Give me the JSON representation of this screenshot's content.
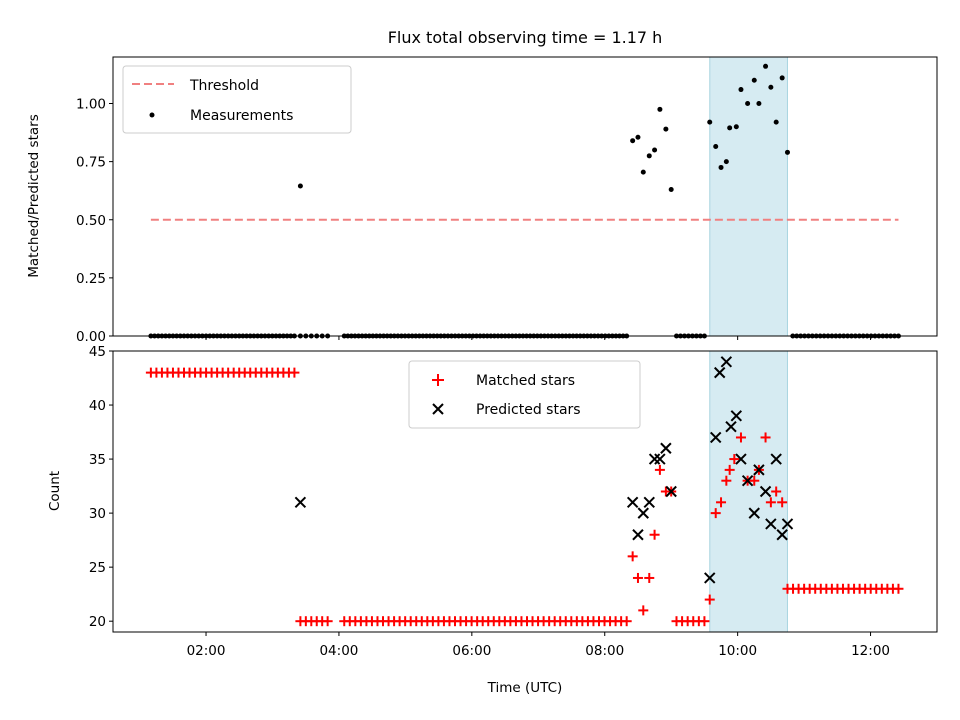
{
  "chart_data": [
    {
      "type": "scatter",
      "title": "Flux total observing time = 1.17 h",
      "xlabel": "",
      "ylabel": "Matched/Predicted stars",
      "ylim": [
        0,
        1.2
      ],
      "yticks": [
        "0.00",
        "0.25",
        "0.50",
        "0.75",
        "1.00"
      ],
      "ytick_values": [
        0,
        0.25,
        0.5,
        0.75,
        1.0
      ],
      "xlim_hours": [
        0.6,
        13.0
      ],
      "highlight_span_hours": [
        9.58,
        10.75
      ],
      "highlight_color": "#add8e6",
      "legend_position": "upper-left",
      "threshold": {
        "name": "Threshold",
        "value": 0.5,
        "x_range_hours": [
          1.17,
          12.42
        ],
        "color": "#f08080"
      },
      "measurements_name": "Measurements",
      "zero_runs_hours": [
        [
          1.17,
          3.33,
          40
        ],
        [
          3.42,
          3.83,
          6
        ],
        [
          4.08,
          8.33,
          80
        ],
        [
          9.08,
          9.5,
          8
        ],
        [
          10.83,
          12.42,
          28
        ]
      ],
      "series": [
        {
          "name": "Measurements",
          "color": "#000000",
          "x_hours": [
            3.42,
            8.42,
            8.5,
            8.58,
            8.67,
            8.75,
            8.83,
            8.92,
            9.0,
            9.58,
            9.67,
            9.75,
            9.83,
            9.88,
            9.98,
            10.05,
            10.15,
            10.25,
            10.32,
            10.42,
            10.5,
            10.58,
            10.67,
            10.75
          ],
          "y": [
            0.645,
            0.84,
            0.855,
            0.705,
            0.775,
            0.8,
            0.975,
            0.89,
            0.63,
            0.92,
            0.815,
            0.725,
            0.75,
            0.895,
            0.9,
            1.06,
            1.0,
            1.1,
            1.0,
            1.16,
            1.07,
            0.92,
            1.11,
            0.79
          ]
        }
      ]
    },
    {
      "type": "scatter",
      "title": "",
      "xlabel": "Time (UTC)",
      "ylabel": "Count",
      "ylim": [
        19,
        45
      ],
      "yticks": [
        "20",
        "25",
        "30",
        "35",
        "40",
        "45"
      ],
      "ytick_values": [
        20,
        25,
        30,
        35,
        40,
        45
      ],
      "xticks": [
        "02:00",
        "04:00",
        "06:00",
        "08:00",
        "10:00",
        "12:00"
      ],
      "xtick_hours": [
        2,
        4,
        6,
        8,
        10,
        12
      ],
      "xlim_hours": [
        0.6,
        13.0
      ],
      "highlight_span_hours": [
        9.58,
        10.75
      ],
      "legend_position": "upper-center",
      "const_runs": [
        [
          1.17,
          3.33,
          43,
          27
        ],
        [
          3.42,
          3.83,
          20,
          6
        ],
        [
          4.08,
          8.33,
          20,
          52
        ],
        [
          9.08,
          9.5,
          20,
          6
        ],
        [
          10.75,
          12.42,
          23,
          21
        ]
      ],
      "series": [
        {
          "name": "Matched stars",
          "marker": "plus",
          "color": "#ff0000",
          "x_hours": [
            8.42,
            8.5,
            8.58,
            8.67,
            8.75,
            8.83,
            8.92,
            9.0,
            9.58,
            9.67,
            9.75,
            9.83,
            9.88,
            9.95,
            10.05,
            10.15,
            10.25,
            10.32,
            10.42,
            10.5,
            10.58,
            10.67
          ],
          "y": [
            26,
            24,
            21,
            24,
            28,
            34,
            32,
            32,
            22,
            30,
            31,
            33,
            34,
            35,
            37,
            33,
            33,
            34,
            37,
            31,
            32,
            31
          ]
        },
        {
          "name": "Predicted stars",
          "marker": "x",
          "color": "#000000",
          "x_hours": [
            3.42,
            8.42,
            8.5,
            8.58,
            8.67,
            8.75,
            8.83,
            8.92,
            9.0,
            9.58,
            9.67,
            9.73,
            9.83,
            9.9,
            9.98,
            10.05,
            10.15,
            10.25,
            10.32,
            10.42,
            10.5,
            10.58,
            10.67,
            10.75
          ],
          "y": [
            31,
            31,
            28,
            30,
            31,
            35,
            35,
            36,
            32,
            24,
            37,
            43,
            44,
            38,
            39,
            35,
            33,
            30,
            34,
            32,
            29,
            35,
            28,
            29
          ]
        }
      ]
    }
  ]
}
